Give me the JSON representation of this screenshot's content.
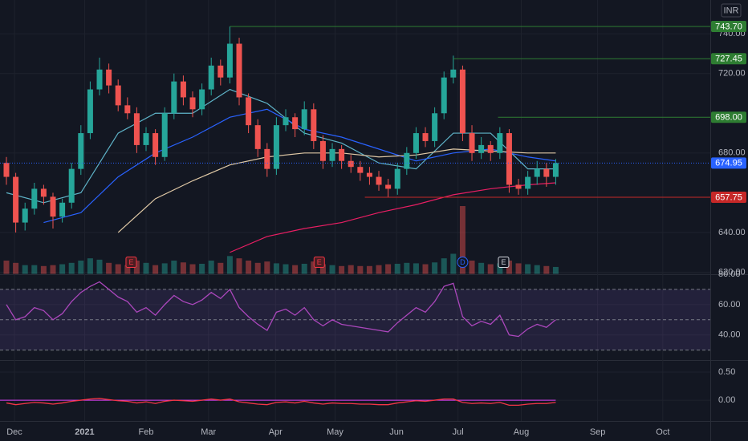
{
  "chart_data": [
    {
      "type": "candlestick",
      "unit_label": "INR",
      "xlim": [
        -0.69,
        75.6
      ],
      "xticks": [
        {
          "value": 0.86,
          "label": "Dec"
        },
        {
          "value": 8.4,
          "label": "2021",
          "bold": true
        },
        {
          "value": 15,
          "label": "Feb"
        },
        {
          "value": 21.7,
          "label": "Mar"
        },
        {
          "value": 28.9,
          "label": "Apr"
        },
        {
          "value": 35.3,
          "label": "May"
        },
        {
          "value": 41.9,
          "label": "Jun"
        },
        {
          "value": 48.5,
          "label": "Jul"
        },
        {
          "value": 55.3,
          "label": "Aug"
        },
        {
          "value": 63.5,
          "label": "Sep"
        },
        {
          "value": 70.5,
          "label": "Oct"
        }
      ],
      "ylim": [
        619,
        757
      ],
      "yticks": [
        {
          "value": 620,
          "label": "620.00"
        },
        {
          "value": 640,
          "label": "640.00"
        },
        {
          "value": 680,
          "label": "680.00"
        },
        {
          "value": 720,
          "label": "720.00"
        },
        {
          "value": 740,
          "label": "740.00"
        }
      ],
      "up_color": "#26a69a",
      "down_color": "#ef5350",
      "x": [
        0,
        1,
        2,
        3,
        4,
        5,
        6,
        7,
        8,
        9,
        10,
        11,
        12,
        13,
        14,
        15,
        16,
        17,
        18,
        19,
        20,
        21,
        22,
        23,
        24,
        25,
        26,
        27,
        28,
        29,
        30,
        31,
        32,
        33,
        34,
        35,
        36,
        37,
        38,
        39,
        40,
        41,
        42,
        43,
        44,
        45,
        46,
        47,
        48,
        49,
        50,
        51,
        52,
        53,
        54,
        55,
        56,
        57,
        58,
        59
      ],
      "open": [
        675,
        668,
        645,
        652,
        662,
        658,
        648,
        655,
        672,
        690,
        712,
        722,
        714,
        704,
        700,
        684,
        690,
        678,
        700,
        716,
        708,
        702,
        712,
        724,
        718,
        735,
        708,
        694,
        682,
        672,
        694,
        698,
        692,
        702,
        686,
        676,
        682,
        676,
        673,
        670,
        668,
        664,
        662,
        672,
        680,
        690,
        686,
        700,
        718,
        722,
        690,
        680,
        684,
        680,
        690,
        664,
        662,
        668,
        672,
        668
      ],
      "high": [
        678,
        670,
        655,
        665,
        664,
        660,
        657,
        675,
        694,
        716,
        728,
        725,
        717,
        708,
        703,
        693,
        692,
        703,
        720,
        719,
        711,
        715,
        728,
        727,
        743.7,
        738,
        710,
        697,
        685,
        698,
        702,
        700,
        706,
        705,
        689,
        685,
        684,
        679,
        676,
        673,
        671,
        667,
        675,
        683,
        693,
        693,
        703,
        721,
        729,
        724,
        694,
        688,
        686,
        693,
        692,
        667,
        671,
        676,
        675,
        677
      ],
      "low": [
        664,
        640,
        641,
        649,
        654,
        642,
        645,
        652,
        669,
        687,
        709,
        710,
        701,
        697,
        680,
        681,
        674,
        676,
        697,
        704,
        698,
        699,
        709,
        714,
        715,
        704,
        690,
        678,
        668,
        669,
        691,
        688,
        689,
        682,
        672,
        673,
        672,
        670,
        666,
        664,
        661,
        657.75,
        659,
        669,
        677,
        683,
        683,
        697,
        715,
        686,
        676,
        677,
        676,
        677,
        660,
        659,
        659,
        664,
        663,
        664
      ],
      "close": [
        668,
        645,
        652,
        662,
        658,
        648,
        655,
        672,
        690,
        712,
        722,
        714,
        704,
        700,
        684,
        690,
        678,
        700,
        716,
        708,
        702,
        712,
        724,
        718,
        735,
        708,
        694,
        682,
        672,
        694,
        698,
        692,
        702,
        686,
        676,
        682,
        676,
        673,
        670,
        668,
        664,
        662,
        672,
        680,
        690,
        686,
        700,
        718,
        722,
        690,
        680,
        684,
        680,
        690,
        664,
        662,
        668,
        672,
        668,
        674.95
      ],
      "volume": [
        3,
        2.5,
        2,
        2,
        1.8,
        2,
        2.2,
        2.5,
        3,
        3.5,
        3.2,
        2.5,
        2.2,
        2,
        3,
        2.5,
        2,
        2.4,
        3,
        2.6,
        2.2,
        2.3,
        3,
        2.5,
        4,
        3.5,
        3,
        2.5,
        2.8,
        2.4,
        2.2,
        2,
        2.3,
        2.8,
        2.2,
        2,
        1.8,
        2,
        1.8,
        1.8,
        2,
        2.2,
        2.3,
        2.5,
        2.4,
        2.2,
        2.6,
        3.5,
        4.5,
        15,
        3,
        2.5,
        2.2,
        2.4,
        3,
        2.4,
        2.2,
        2,
        1.8,
        1.6
      ],
      "ma": [
        {
          "color": "#5fb4c9",
          "x": [
            0,
            4,
            8,
            12,
            16,
            20,
            24,
            28,
            32,
            36,
            40,
            44,
            48,
            52,
            56,
            59
          ],
          "values": [
            660,
            655,
            660,
            690,
            700,
            700,
            712,
            705,
            690,
            685,
            675,
            672,
            690,
            690,
            672,
            672
          ]
        },
        {
          "color": "#2962ff",
          "x": [
            0,
            4,
            8,
            12,
            16,
            20,
            24,
            28,
            32,
            36,
            40,
            44,
            48,
            52,
            56,
            59
          ],
          "values": [
            null,
            645,
            650,
            668,
            680,
            688,
            698,
            702,
            692,
            688,
            682,
            676,
            680,
            682,
            678,
            676
          ]
        },
        {
          "color": "#e0c9a6",
          "x": [
            0,
            4,
            8,
            12,
            16,
            20,
            24,
            28,
            32,
            36,
            40,
            44,
            48,
            52,
            56,
            59
          ],
          "values": [
            null,
            null,
            null,
            640,
            657,
            666,
            674,
            678,
            680,
            680,
            678,
            679,
            682,
            681,
            680,
            680
          ]
        },
        {
          "color": "#e91e63",
          "x": [
            0,
            4,
            8,
            12,
            16,
            20,
            24,
            28,
            32,
            36,
            40,
            44,
            48,
            52,
            56,
            59
          ],
          "values": [
            null,
            null,
            null,
            null,
            null,
            null,
            630,
            638,
            642,
            645,
            650,
            654,
            659,
            662,
            664,
            665
          ]
        }
      ],
      "levels": [
        {
          "value": 743.7,
          "label": "743.70",
          "color": "#2e7d32",
          "x": 24
        },
        {
          "value": 727.45,
          "label": "727.45",
          "color": "#2e7d32",
          "x": 48
        },
        {
          "value": 698,
          "label": "698.00",
          "color": "#2e7d32",
          "x": 52.8
        },
        {
          "value": 657.75,
          "label": "657.75",
          "color": "#c62828",
          "x": 38.5
        }
      ],
      "last": {
        "value": 674.95,
        "label": "674.95",
        "color": "#2962ff"
      },
      "events": [
        {
          "x": 13.4,
          "label": "E",
          "color": "#f23645"
        },
        {
          "x": 33.6,
          "label": "E",
          "color": "#f23645"
        },
        {
          "x": 49,
          "label": "D",
          "color": "#2962ff"
        },
        {
          "x": 53.4,
          "label": "E",
          "color": "#d1d4dc"
        }
      ]
    },
    {
      "type": "line",
      "ylim": [
        24,
        80
      ],
      "yticks": [
        {
          "value": 40,
          "label": "40.00"
        },
        {
          "value": 60,
          "label": "60.00"
        },
        {
          "value": 80,
          "label": "80.00"
        }
      ],
      "bands": [
        30,
        70
      ],
      "midline": 50,
      "band_color": "#7e57c2",
      "series": [
        {
          "color": "#ab47bc",
          "values": [
            60,
            50,
            52,
            58,
            56,
            50,
            54,
            62,
            68,
            72,
            75,
            70,
            65,
            62,
            55,
            58,
            53,
            60,
            66,
            62,
            60,
            63,
            68,
            64,
            70,
            58,
            52,
            47,
            43,
            55,
            57,
            53,
            58,
            50,
            46,
            50,
            47,
            46,
            45,
            44,
            43,
            42,
            48,
            53,
            58,
            55,
            62,
            72,
            74,
            52,
            46,
            49,
            47,
            53,
            40,
            39,
            44,
            47,
            45,
            50
          ]
        }
      ]
    },
    {
      "type": "line",
      "ylim": [
        -0.37,
        0.7
      ],
      "yticks": [
        {
          "value": 0,
          "label": "0.00"
        },
        {
          "value": 0.5,
          "label": "0.50"
        }
      ],
      "hline": 0,
      "hline_color": "#e040fb",
      "series": [
        {
          "color": "#f23645",
          "values": [
            -0.05,
            -0.08,
            -0.06,
            -0.04,
            -0.05,
            -0.07,
            -0.05,
            -0.02,
            0,
            0.02,
            0.03,
            0.01,
            -0.01,
            -0.02,
            -0.05,
            -0.03,
            -0.06,
            -0.02,
            0,
            -0.01,
            -0.02,
            0,
            0.02,
            0,
            0.02,
            -0.03,
            -0.05,
            -0.07,
            -0.08,
            -0.04,
            -0.03,
            -0.05,
            -0.02,
            -0.05,
            -0.07,
            -0.05,
            -0.06,
            -0.06,
            -0.07,
            -0.07,
            -0.08,
            -0.08,
            -0.05,
            -0.03,
            -0.01,
            -0.02,
            0,
            0.02,
            0.02,
            -0.04,
            -0.06,
            -0.05,
            -0.06,
            -0.04,
            -0.09,
            -0.09,
            -0.07,
            -0.06,
            -0.06,
            -0.04
          ]
        }
      ]
    }
  ]
}
